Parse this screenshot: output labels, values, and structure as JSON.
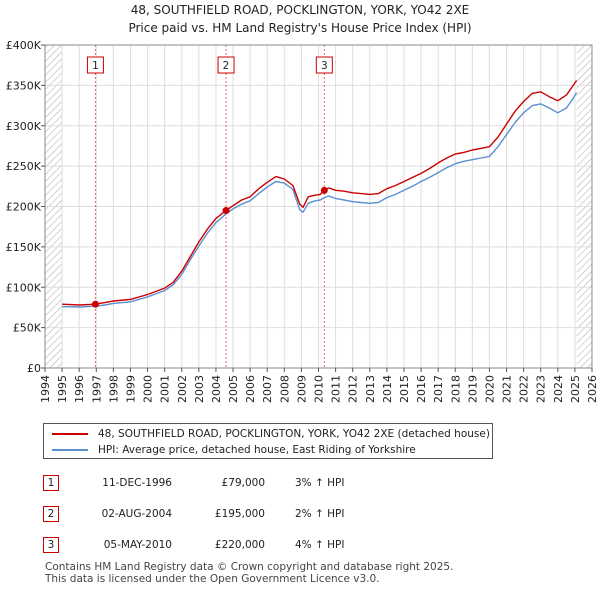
{
  "header": {
    "title_line1": "48, SOUTHFIELD ROAD, POCKLINGTON, YORK, YO42 2XE",
    "title_line2": "Price paid vs. HM Land Registry's House Price Index (HPI)"
  },
  "legend": {
    "property": "48, SOUTHFIELD ROAD, POCKLINGTON, YORK, YO42 2XE (detached house)",
    "hpi": "HPI: Average price, detached house, East Riding of Yorkshire"
  },
  "colors": {
    "property_line": "#cc0000",
    "hpi_line": "#5b8fd1",
    "marker_border": "#cc0000",
    "plot_bg": "#ffffff",
    "grid": "#dddddd",
    "hatch": "#aaaaaa"
  },
  "transactions": [
    {
      "num": "1",
      "date": "11-DEC-1996",
      "price": "£79,000",
      "hpi": "3% ↑ HPI"
    },
    {
      "num": "2",
      "date": "02-AUG-2004",
      "price": "£195,000",
      "hpi": "2% ↑ HPI"
    },
    {
      "num": "3",
      "date": "05-MAY-2010",
      "price": "£220,000",
      "hpi": "4% ↑ HPI"
    }
  ],
  "footer": {
    "line1": "Contains HM Land Registry data © Crown copyright and database right 2025.",
    "line2": "This data is licensed under the Open Government Licence v3.0."
  },
  "chart_data": {
    "type": "line",
    "title": "48, SOUTHFIELD ROAD, POCKLINGTON, YORK, YO42 2XE",
    "subtitle": "Price paid vs. HM Land Registry's House Price Index (HPI)",
    "xlabel": "",
    "ylabel": "",
    "xlim": [
      1994,
      2026
    ],
    "ylim": [
      0,
      400000
    ],
    "x_ticks": [
      "1994",
      "1995",
      "1996",
      "1997",
      "1998",
      "1999",
      "2000",
      "2001",
      "2002",
      "2003",
      "2004",
      "2005",
      "2006",
      "2007",
      "2008",
      "2009",
      "2010",
      "2011",
      "2012",
      "2013",
      "2014",
      "2015",
      "2016",
      "2017",
      "2018",
      "2019",
      "2020",
      "2021",
      "2022",
      "2023",
      "2024",
      "2025",
      "2026"
    ],
    "y_ticks": [
      {
        "value": 0,
        "label": "£0"
      },
      {
        "value": 50000,
        "label": "£50K"
      },
      {
        "value": 100000,
        "label": "£100K"
      },
      {
        "value": 150000,
        "label": "£150K"
      },
      {
        "value": 200000,
        "label": "£200K"
      },
      {
        "value": 250000,
        "label": "£250K"
      },
      {
        "value": 300000,
        "label": "£300K"
      },
      {
        "value": 350000,
        "label": "£350K"
      },
      {
        "value": 400000,
        "label": "£400K"
      }
    ],
    "hatched_ranges": [
      [
        1994,
        1995.0
      ],
      [
        2025.1,
        2026
      ]
    ],
    "grid": true,
    "legend_position": "below",
    "series": [
      {
        "name": "48, SOUTHFIELD ROAD, POCKLINGTON, YORK, YO42 2XE (detached house)",
        "points": [
          [
            1995.0,
            79000
          ],
          [
            1996.0,
            78000
          ],
          [
            1996.95,
            79000
          ],
          [
            1997.5,
            81000
          ],
          [
            1998.0,
            83000
          ],
          [
            1999.0,
            85000
          ],
          [
            2000.0,
            91000
          ],
          [
            2001.0,
            99000
          ],
          [
            2001.5,
            106000
          ],
          [
            2002.0,
            120000
          ],
          [
            2002.5,
            138000
          ],
          [
            2003.0,
            156000
          ],
          [
            2003.5,
            172000
          ],
          [
            2004.0,
            185000
          ],
          [
            2004.59,
            195000
          ],
          [
            2005.0,
            201000
          ],
          [
            2005.5,
            208000
          ],
          [
            2006.0,
            212000
          ],
          [
            2006.5,
            222000
          ],
          [
            2007.0,
            230000
          ],
          [
            2007.5,
            237000
          ],
          [
            2008.0,
            234000
          ],
          [
            2008.5,
            226000
          ],
          [
            2008.9,
            203000
          ],
          [
            2009.1,
            199000
          ],
          [
            2009.4,
            212000
          ],
          [
            2009.8,
            214000
          ],
          [
            2010.1,
            215000
          ],
          [
            2010.34,
            220000
          ],
          [
            2010.6,
            223000
          ],
          [
            2011.0,
            220000
          ],
          [
            2011.5,
            219000
          ],
          [
            2012.0,
            217000
          ],
          [
            2012.5,
            216000
          ],
          [
            2013.0,
            215000
          ],
          [
            2013.5,
            216000
          ],
          [
            2014.0,
            222000
          ],
          [
            2014.5,
            226000
          ],
          [
            2015.0,
            231000
          ],
          [
            2015.5,
            236000
          ],
          [
            2016.0,
            241000
          ],
          [
            2016.5,
            247000
          ],
          [
            2017.0,
            254000
          ],
          [
            2017.5,
            260000
          ],
          [
            2018.0,
            265000
          ],
          [
            2018.5,
            267000
          ],
          [
            2019.0,
            270000
          ],
          [
            2019.5,
            272000
          ],
          [
            2020.0,
            274000
          ],
          [
            2020.5,
            286000
          ],
          [
            2021.0,
            302000
          ],
          [
            2021.5,
            318000
          ],
          [
            2022.0,
            330000
          ],
          [
            2022.5,
            340000
          ],
          [
            2023.0,
            342000
          ],
          [
            2023.5,
            336000
          ],
          [
            2024.0,
            331000
          ],
          [
            2024.5,
            338000
          ],
          [
            2024.9,
            350000
          ],
          [
            2025.1,
            356000
          ]
        ]
      },
      {
        "name": "HPI: Average price, detached house, East Riding of Yorkshire",
        "points": [
          [
            1995.0,
            76000
          ],
          [
            1996.0,
            75500
          ],
          [
            1996.95,
            76500
          ],
          [
            1997.5,
            78000
          ],
          [
            1998.0,
            80000
          ],
          [
            1999.0,
            82000
          ],
          [
            2000.0,
            88000
          ],
          [
            2001.0,
            96000
          ],
          [
            2001.5,
            103000
          ],
          [
            2002.0,
            116000
          ],
          [
            2002.5,
            134000
          ],
          [
            2003.0,
            151000
          ],
          [
            2003.5,
            167000
          ],
          [
            2004.0,
            180000
          ],
          [
            2004.59,
            191000
          ],
          [
            2005.0,
            197000
          ],
          [
            2005.5,
            203000
          ],
          [
            2006.0,
            207000
          ],
          [
            2006.5,
            216000
          ],
          [
            2007.0,
            224000
          ],
          [
            2007.5,
            231000
          ],
          [
            2008.0,
            229000
          ],
          [
            2008.5,
            221000
          ],
          [
            2008.9,
            196000
          ],
          [
            2009.1,
            193000
          ],
          [
            2009.4,
            204000
          ],
          [
            2009.8,
            207000
          ],
          [
            2010.1,
            208000
          ],
          [
            2010.34,
            211000
          ],
          [
            2010.6,
            213000
          ],
          [
            2011.0,
            210000
          ],
          [
            2011.5,
            208000
          ],
          [
            2012.0,
            206000
          ],
          [
            2012.5,
            205000
          ],
          [
            2013.0,
            204000
          ],
          [
            2013.5,
            205000
          ],
          [
            2014.0,
            211000
          ],
          [
            2014.5,
            215000
          ],
          [
            2015.0,
            220000
          ],
          [
            2015.5,
            225000
          ],
          [
            2016.0,
            231000
          ],
          [
            2016.5,
            236000
          ],
          [
            2017.0,
            242000
          ],
          [
            2017.5,
            248000
          ],
          [
            2018.0,
            253000
          ],
          [
            2018.5,
            256000
          ],
          [
            2019.0,
            258000
          ],
          [
            2019.5,
            260000
          ],
          [
            2020.0,
            262000
          ],
          [
            2020.5,
            274000
          ],
          [
            2021.0,
            289000
          ],
          [
            2021.5,
            304000
          ],
          [
            2022.0,
            316000
          ],
          [
            2022.5,
            325000
          ],
          [
            2023.0,
            327000
          ],
          [
            2023.5,
            322000
          ],
          [
            2024.0,
            316000
          ],
          [
            2024.5,
            322000
          ],
          [
            2024.9,
            334000
          ],
          [
            2025.1,
            341000
          ]
        ]
      }
    ],
    "sales": [
      {
        "label": "1",
        "x": 1996.95,
        "y": 79000
      },
      {
        "label": "2",
        "x": 2004.59,
        "y": 195000
      },
      {
        "label": "3",
        "x": 2010.34,
        "y": 220000
      }
    ]
  }
}
